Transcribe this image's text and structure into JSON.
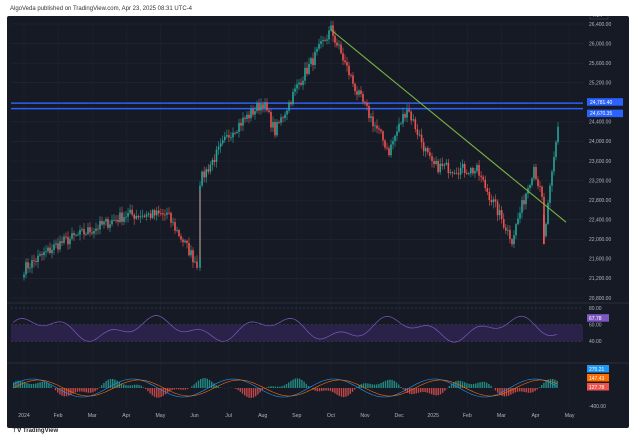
{
  "header": {
    "text": "AlgoVeda published on TradingView.com, Apr 23, 2025 08:31 UTC-4"
  },
  "footer": {
    "logo_text": "TradingView"
  },
  "colors": {
    "background": "#161a25",
    "up": "#26a69a",
    "down": "#ef5350",
    "trendline": "#7cb342",
    "resistance": "#2962ff",
    "rsi": "#7e57c2",
    "macd_line": "#2196f3",
    "signal_line": "#ff6d00"
  },
  "chart_data": [
    {
      "type": "candlestick",
      "currency_label": "INR",
      "ylim": [
        20800,
        26400
      ],
      "y_ticks": [
        "26,400.00",
        "26,000.00",
        "25,600.00",
        "25,200.00",
        "24,800.00",
        "24,400.00",
        "24,000.00",
        "23,600.00",
        "23,200.00",
        "22,800.00",
        "22,400.00",
        "22,000.00",
        "21,600.00",
        "21,200.00",
        "20,800.00"
      ],
      "x_ticks": [
        "2024",
        "Feb",
        "Mar",
        "Apr",
        "May",
        "Jun",
        "Jul",
        "Aug",
        "Sep",
        "Oct",
        "Nov",
        "Dec",
        "2025",
        "Feb",
        "Mar",
        "Apr",
        "May"
      ],
      "price_labels": [
        "24,781.40",
        "24,670.35"
      ],
      "resistance_levels": [
        24781.4,
        24670.35
      ],
      "trendline": {
        "start": [
          "Sep-end",
          26280
        ],
        "end": [
          "Apr-mid",
          22350
        ]
      },
      "key_points": [
        {
          "x": "2024",
          "y": 21400
        },
        {
          "x": "Feb",
          "y": 21900
        },
        {
          "x": "Mar",
          "y": 22200
        },
        {
          "x": "Apr",
          "y": 22500
        },
        {
          "x": "May",
          "y": 22500
        },
        {
          "x": "Jun",
          "y": 21500
        },
        {
          "x": "Jun",
          "y": 23200
        },
        {
          "x": "Jul",
          "y": 24200
        },
        {
          "x": "Aug",
          "y": 24800
        },
        {
          "x": "Aug",
          "y": 24200
        },
        {
          "x": "Sep",
          "y": 25200
        },
        {
          "x": "Sep-end",
          "y": 26280
        },
        {
          "x": "Oct",
          "y": 25000
        },
        {
          "x": "Nov",
          "y": 23800
        },
        {
          "x": "Dec",
          "y": 24700
        },
        {
          "x": "2025",
          "y": 23500
        },
        {
          "x": "Feb",
          "y": 23400
        },
        {
          "x": "Mar",
          "y": 22000
        },
        {
          "x": "Mar",
          "y": 23500
        },
        {
          "x": "Apr",
          "y": 22800
        },
        {
          "x": "Apr",
          "y": 22000
        },
        {
          "x": "Apr",
          "y": 24300
        }
      ]
    },
    {
      "type": "line",
      "name": "RSI",
      "ylim": [
        20,
        80
      ],
      "y_ticks": [
        "80.00",
        "60.00",
        "40.00"
      ],
      "last_value_label": "67.78",
      "band": [
        40,
        60
      ]
    },
    {
      "type": "bar",
      "name": "MACD",
      "y_ticks": [
        "-400.00"
      ],
      "value_labels": [
        "275.21",
        "147.43",
        "127.78"
      ]
    }
  ]
}
